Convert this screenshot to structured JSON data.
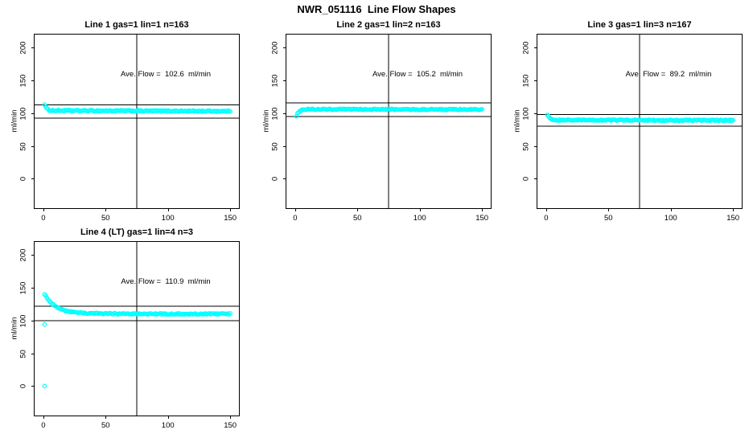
{
  "main_title": "NWR_051116  Line Flow Shapes",
  "colors": {
    "points": "#00ffff",
    "axis": "#000000",
    "background": "#ffffff",
    "text": "#000000"
  },
  "chart_data": [
    {
      "type": "scatter",
      "panel": "top-left",
      "title": "Line 1 gas=1 lin=1 n=163",
      "line": 1,
      "gas": 1,
      "lin": 1,
      "n": 163,
      "ave_flow": 102.6,
      "ave_flow_text": "Ave. Flow =  102.6  ml/min",
      "xlabel": "",
      "ylabel": "ml/min",
      "xticks": [
        0,
        50,
        100,
        150
      ],
      "yticks": [
        0,
        50,
        100,
        150,
        200
      ],
      "xlim": [
        -7,
        157
      ],
      "ylim": [
        -45,
        220
      ],
      "grid": false,
      "legend": "none",
      "vline_x": 75,
      "ref_lines": [
        112.9,
        92.3
      ],
      "profile": {
        "x_start": 1,
        "x_end": 150,
        "points": 163,
        "start": 114,
        "plateau": 104,
        "tau": 1.5,
        "drift": -1,
        "jitter": 1.0
      },
      "outliers": []
    },
    {
      "type": "scatter",
      "panel": "top-middle",
      "title": "Line 2 gas=1 lin=2 n=163",
      "line": 2,
      "gas": 1,
      "lin": 2,
      "n": 163,
      "ave_flow": 105.2,
      "ave_flow_text": "Ave. Flow =  105.2  ml/min",
      "xlabel": "",
      "ylabel": "ml/min",
      "xticks": [
        0,
        50,
        100,
        150
      ],
      "yticks": [
        0,
        50,
        100,
        150,
        200
      ],
      "xlim": [
        -7,
        157
      ],
      "ylim": [
        -45,
        220
      ],
      "grid": false,
      "legend": "none",
      "vline_x": 75,
      "ref_lines": [
        115.7,
        94.7
      ],
      "profile": {
        "x_start": 1,
        "x_end": 150,
        "points": 163,
        "start": 96,
        "plateau": 106,
        "tau": 2,
        "drift": -0.5,
        "jitter": 0.9
      },
      "outliers": []
    },
    {
      "type": "scatter",
      "panel": "top-right",
      "title": "Line 3 gas=1 lin=3 n=167",
      "line": 3,
      "gas": 1,
      "lin": 3,
      "n": 167,
      "ave_flow": 89.2,
      "ave_flow_text": "Ave. Flow =  89.2  ml/min",
      "xlabel": "",
      "ylabel": "ml/min",
      "xticks": [
        0,
        50,
        100,
        150
      ],
      "yticks": [
        0,
        50,
        100,
        150,
        200
      ],
      "xlim": [
        -7,
        157
      ],
      "ylim": [
        -45,
        220
      ],
      "grid": false,
      "legend": "none",
      "vline_x": 75,
      "ref_lines": [
        98.1,
        80.3
      ],
      "profile": {
        "x_start": 1,
        "x_end": 150,
        "points": 167,
        "start": 98,
        "plateau": 89.5,
        "tau": 2,
        "drift": -0.5,
        "jitter": 0.9
      },
      "outliers": []
    },
    {
      "type": "scatter",
      "panel": "bottom-left",
      "title": "Line 4 (LT) gas=1 lin=4 n=3",
      "line": 4,
      "gas": 1,
      "lin": 4,
      "n": 3,
      "ave_flow": 110.9,
      "ave_flow_text": "Ave. Flow =  110.9  ml/min",
      "xlabel": "",
      "ylabel": "ml/min",
      "xticks": [
        0,
        50,
        100,
        150
      ],
      "yticks": [
        0,
        50,
        100,
        150,
        200
      ],
      "xlim": [
        -7,
        157
      ],
      "ylim": [
        -45,
        220
      ],
      "grid": false,
      "legend": "none",
      "vline_x": 75,
      "ref_lines": [
        122.0,
        99.8
      ],
      "profile": {
        "x_start": 1,
        "x_end": 150,
        "points": 150,
        "start": 140,
        "plateau": 110.5,
        "tau": 9,
        "drift": -0.5,
        "jitter": 1.0
      },
      "outliers": [
        [
          1,
          94
        ],
        [
          1,
          0
        ]
      ]
    }
  ]
}
